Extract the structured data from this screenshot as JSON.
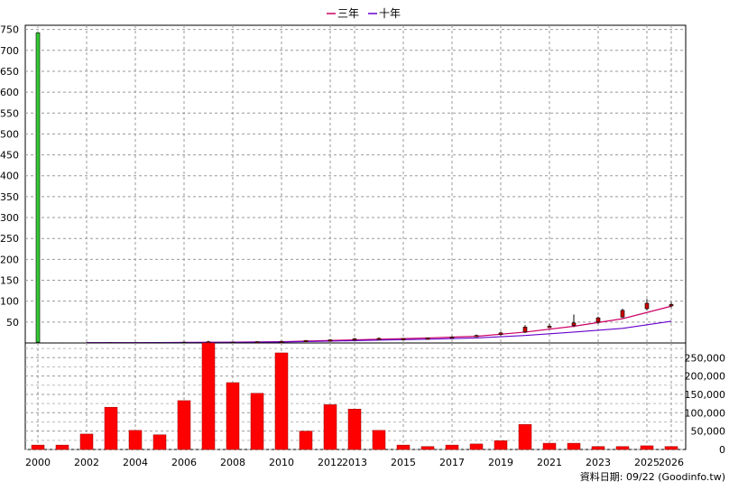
{
  "chart_data": [
    {
      "type": "candlestick",
      "legend": {
        "placement": "top-center",
        "items": [
          {
            "label": "三年",
            "color": "#cc0066"
          },
          {
            "label": "十年",
            "color": "#6600cc"
          }
        ]
      },
      "y_axis": {
        "position": "left",
        "ylim": [
          0,
          760
        ],
        "ticks": [
          50,
          100,
          150,
          200,
          250,
          300,
          350,
          400,
          450,
          500,
          550,
          600,
          650,
          700,
          750
        ]
      },
      "grid": true,
      "candles": [
        {
          "x": 2000,
          "open": 2,
          "close": 742,
          "high": 742,
          "low": 2,
          "color": "#33cc33"
        },
        {
          "x": 2001,
          "open": 0.5,
          "close": 0.3,
          "high": 1.2,
          "low": 0,
          "color": "#cc0000"
        },
        {
          "x": 2002,
          "open": 0.5,
          "close": 0.4,
          "high": 0.8,
          "low": 0.2,
          "color": "#cc0000"
        },
        {
          "x": 2003,
          "open": 0.8,
          "close": 0.5,
          "high": 1.0,
          "low": 0.3,
          "color": "#cc0000"
        },
        {
          "x": 2004,
          "open": 0.6,
          "close": 0.4,
          "high": 0.8,
          "low": 0.2,
          "color": "#cc0000"
        },
        {
          "x": 2005,
          "open": 0.7,
          "close": 0.5,
          "high": 0.9,
          "low": 0.3,
          "color": "#cc0000"
        },
        {
          "x": 2006,
          "open": 1.0,
          "close": 2.0,
          "high": 2.5,
          "low": 0.8,
          "color": "#cc0000"
        },
        {
          "x": 2007,
          "open": 2.0,
          "close": 3.0,
          "high": 5.0,
          "low": 1.5,
          "color": "#cc0000"
        },
        {
          "x": 2008,
          "open": 2.0,
          "close": 1.5,
          "high": 2.5,
          "low": 1.0,
          "color": "#cc0000"
        },
        {
          "x": 2009,
          "open": 2.5,
          "close": 3.0,
          "high": 4.0,
          "low": 2.0,
          "color": "#cc0000"
        },
        {
          "x": 2010,
          "open": 3.0,
          "close": 4.0,
          "high": 5.0,
          "low": 2.5,
          "color": "#cc0000"
        },
        {
          "x": 2011,
          "open": 5.0,
          "close": 6.0,
          "high": 7.0,
          "low": 4.0,
          "color": "#cc0000"
        },
        {
          "x": 2012,
          "open": 6.0,
          "close": 7.5,
          "high": 9.0,
          "low": 5.0,
          "color": "#cc0000"
        },
        {
          "x": 2013,
          "open": 8.0,
          "close": 10.0,
          "high": 12.0,
          "low": 7.0,
          "color": "#cc0000"
        },
        {
          "x": 2014,
          "open": 10.0,
          "close": 11.0,
          "high": 13.0,
          "low": 9.0,
          "color": "#cc0000"
        },
        {
          "x": 2015,
          "open": 10.0,
          "close": 10.5,
          "high": 12.0,
          "low": 9.0,
          "color": "#cc0000"
        },
        {
          "x": 2016,
          "open": 11.0,
          "close": 12.0,
          "high": 13.0,
          "low": 10.0,
          "color": "#cc0000"
        },
        {
          "x": 2017,
          "open": 13.0,
          "close": 14.5,
          "high": 16.0,
          "low": 12.0,
          "color": "#cc0000"
        },
        {
          "x": 2018,
          "open": 16.0,
          "close": 18.0,
          "high": 20.0,
          "low": 15.0,
          "color": "#cc0000"
        },
        {
          "x": 2019,
          "open": 20.0,
          "close": 24.0,
          "high": 27.0,
          "low": 18.0,
          "color": "#cc0000"
        },
        {
          "x": 2020,
          "open": 26.0,
          "close": 38.0,
          "high": 43.0,
          "low": 24.0,
          "color": "#cc0000"
        },
        {
          "x": 2021,
          "open": 38.0,
          "close": 40.0,
          "high": 46.0,
          "low": 36.0,
          "color": "#cc0000"
        },
        {
          "x": 2022,
          "open": 42.0,
          "close": 48.0,
          "high": 68.0,
          "low": 38.0,
          "color": "#cc0000"
        },
        {
          "x": 2023,
          "open": 50.0,
          "close": 60.0,
          "high": 63.0,
          "low": 46.0,
          "color": "#cc0000"
        },
        {
          "x": 2024,
          "open": 62.0,
          "close": 78.0,
          "high": 82.0,
          "low": 60.0,
          "color": "#cc0000"
        },
        {
          "x": 2025,
          "open": 82.0,
          "close": 95.0,
          "high": 105.0,
          "low": 78.0,
          "color": "#cc0000"
        },
        {
          "x": 2026,
          "open": 90.0,
          "close": 92.0,
          "high": 98.0,
          "low": 85.0,
          "color": "#cc0000"
        }
      ],
      "series": [
        {
          "name": "三年",
          "color": "#cc0066",
          "x": [
            2002,
            2004,
            2006,
            2008,
            2010,
            2012,
            2014,
            2016,
            2018,
            2020,
            2022,
            2024,
            2026
          ],
          "values": [
            0.5,
            0.6,
            1.2,
            2.0,
            3.0,
            6.0,
            9.0,
            12.0,
            16.0,
            26.0,
            40.0,
            58.0,
            88.0
          ]
        },
        {
          "name": "十年",
          "color": "#6600cc",
          "x": [
            2002,
            2004,
            2006,
            2008,
            2010,
            2012,
            2014,
            2016,
            2018,
            2020,
            2022,
            2024,
            2026
          ],
          "values": [
            0.5,
            0.5,
            1.0,
            1.5,
            2.5,
            4.5,
            7.0,
            9.0,
            12.0,
            18.0,
            26.0,
            35.0,
            52.0
          ]
        }
      ]
    },
    {
      "type": "bar",
      "y_axis": {
        "position": "right",
        "ylim": [
          0,
          290000
        ],
        "ticks": [
          {
            "v": 0,
            "label": "0"
          },
          {
            "v": 50000,
            "label": "50,000"
          },
          {
            "v": 100000,
            "label": "100,000"
          },
          {
            "v": 150000,
            "label": "150,000"
          },
          {
            "v": 200000,
            "label": "200,000"
          },
          {
            "v": 250000,
            "label": "250,000"
          }
        ]
      },
      "grid": true,
      "bar_color": "#ff0000",
      "x": [
        2000,
        2001,
        2002,
        2003,
        2004,
        2005,
        2006,
        2007,
        2008,
        2009,
        2010,
        2011,
        2012,
        2013,
        2014,
        2015,
        2016,
        2017,
        2018,
        2019,
        2020,
        2021,
        2022,
        2023,
        2024,
        2025,
        2026
      ],
      "values": [
        12000,
        12000,
        42000,
        115000,
        52000,
        40000,
        133000,
        290000,
        182000,
        153000,
        263000,
        50000,
        122000,
        110000,
        52000,
        12000,
        8000,
        12000,
        15000,
        24000,
        68000,
        17000,
        17000,
        8000,
        8000,
        10000,
        8000
      ]
    }
  ],
  "x_axis_labels": [
    "2000",
    "2002",
    "2004",
    "2006",
    "2008",
    "2010",
    "2012",
    "2013",
    "2015",
    "2017",
    "2019",
    "2021",
    "2023",
    "2025",
    "2026"
  ],
  "x_axis_label_years": [
    2000,
    2002,
    2004,
    2006,
    2008,
    2010,
    2012,
    2013,
    2015,
    2017,
    2019,
    2021,
    2023,
    2025,
    2026
  ],
  "footer": {
    "source": "資料日期: 09/22  (Goodinfo.tw)"
  }
}
